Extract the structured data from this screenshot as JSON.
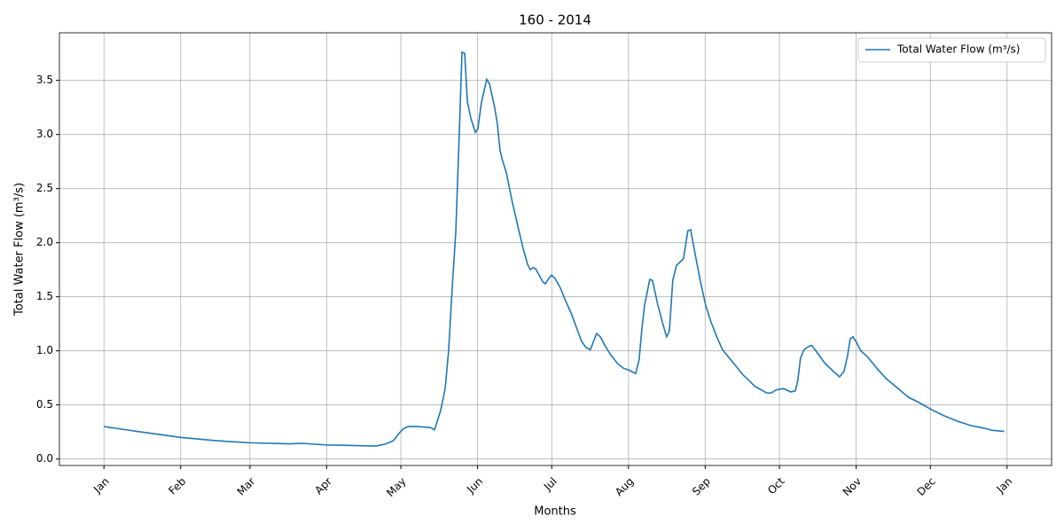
{
  "chart_data": {
    "type": "line",
    "title": "160 - 2014",
    "x_label": "Months",
    "y_label": "Total Water Flow (m³/s)",
    "x": [
      0,
      15,
      31,
      45,
      59,
      75,
      80,
      90,
      100,
      110,
      114,
      117,
      119,
      121,
      123,
      127,
      132,
      133.6,
      136.1,
      137.9,
      139.3,
      140.8,
      142.2,
      143.6,
      144.7,
      145.8,
      146.9,
      148.3,
      150.1,
      151.1,
      152.6,
      154.7,
      155.8,
      157.9,
      159,
      160.1,
      161.2,
      162.6,
      164.8,
      167.3,
      169.4,
      171.2,
      172.3,
      173.4,
      174.4,
      175.9,
      177.3,
      178.4,
      179.8,
      180.9,
      182.3,
      184.5,
      186.6,
      188.8,
      190.9,
      193,
      194.8,
      196.6,
      198.1,
      199.1,
      200.6,
      202.7,
      204.9,
      207.7,
      209.9,
      212.4,
      214.9,
      216.3,
      217.4,
      218.5,
      220.6,
      221.7,
      223.9,
      226,
      227.4,
      228.5,
      229.9,
      231.4,
      232.8,
      234.2,
      236,
      237.1,
      238.9,
      241,
      243.2,
      245.3,
      247.5,
      250,
      253.6,
      258.2,
      263.2,
      267.9,
      269.6,
      271.8,
      274.7,
      277.6,
      279.4,
      280.4,
      281.5,
      282.9,
      284.7,
      286.1,
      288.7,
      291.2,
      294.8,
      297.3,
      299.1,
      300.5,
      301.6,
      302.7,
      304.1,
      305.9,
      308.4,
      312.7,
      316.3,
      321.6,
      325.2,
      328.8,
      334.2,
      339.5,
      344.9,
      350.3,
      355.6,
      359.2,
      363.9
    ],
    "series": [
      {
        "name": "Total Water Flow (m³/s)",
        "color": "#1f77b4",
        "values": [
          0.3,
          0.25,
          0.2,
          0.17,
          0.15,
          0.14,
          0.145,
          0.13,
          0.125,
          0.12,
          0.14,
          0.17,
          0.23,
          0.28,
          0.3,
          0.3,
          0.29,
          0.27,
          0.45,
          0.65,
          1.0,
          1.6,
          2.1,
          3.0,
          3.76,
          3.75,
          3.3,
          3.15,
          3.02,
          3.05,
          3.3,
          3.51,
          3.47,
          3.25,
          3.1,
          2.85,
          2.75,
          2.65,
          2.4,
          2.15,
          1.95,
          1.8,
          1.75,
          1.77,
          1.76,
          1.7,
          1.64,
          1.62,
          1.67,
          1.7,
          1.67,
          1.58,
          1.46,
          1.35,
          1.22,
          1.09,
          1.03,
          1.01,
          1.1,
          1.16,
          1.13,
          1.04,
          0.96,
          0.88,
          0.84,
          0.82,
          0.79,
          0.92,
          1.2,
          1.42,
          1.66,
          1.65,
          1.42,
          1.24,
          1.13,
          1.18,
          1.65,
          1.79,
          1.82,
          1.85,
          2.11,
          2.12,
          1.9,
          1.65,
          1.42,
          1.27,
          1.14,
          1.01,
          0.91,
          0.78,
          0.67,
          0.61,
          0.61,
          0.64,
          0.65,
          0.62,
          0.63,
          0.72,
          0.93,
          1.01,
          1.04,
          1.05,
          0.97,
          0.89,
          0.81,
          0.76,
          0.81,
          0.95,
          1.11,
          1.13,
          1.08,
          1.0,
          0.95,
          0.83,
          0.74,
          0.64,
          0.57,
          0.53,
          0.46,
          0.4,
          0.35,
          0.31,
          0.285,
          0.265,
          0.255
        ]
      }
    ],
    "xlim": [
      -18,
      383
    ],
    "xticks": [
      {
        "value": 0,
        "label": "Jan"
      },
      {
        "value": 31,
        "label": "Feb"
      },
      {
        "value": 59,
        "label": "Mar"
      },
      {
        "value": 90,
        "label": "Apr"
      },
      {
        "value": 120,
        "label": "May"
      },
      {
        "value": 151,
        "label": "Jun"
      },
      {
        "value": 181,
        "label": "Jul"
      },
      {
        "value": 212,
        "label": "Aug"
      },
      {
        "value": 243,
        "label": "Sep"
      },
      {
        "value": 273,
        "label": "Oct"
      },
      {
        "value": 304,
        "label": "Nov"
      },
      {
        "value": 334,
        "label": "Dec"
      },
      {
        "value": 365,
        "label": "Jan"
      }
    ],
    "ylim": [
      -0.06,
      3.94
    ],
    "yticks": [
      {
        "value": 0,
        "label": "0.0"
      },
      0.5,
      {
        "value": 1,
        "label": "1.0"
      },
      1.5,
      {
        "value": 2,
        "label": "2.0"
      },
      2.5,
      {
        "value": 3,
        "label": "3.0"
      },
      3.5
    ],
    "grid": true,
    "legend": "upper right"
  }
}
